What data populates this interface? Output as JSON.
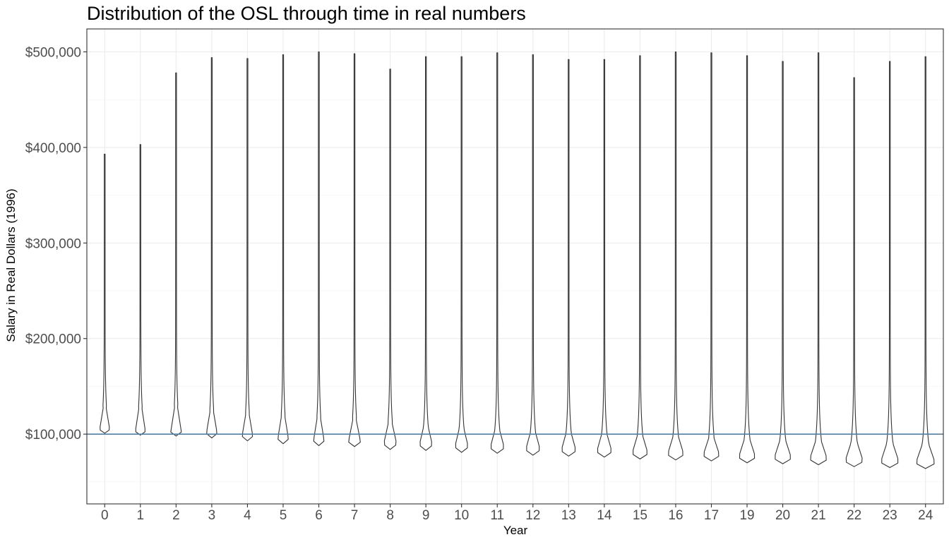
{
  "chart_data": {
    "type": "violin",
    "title": "Distribution of the OSL through time in real numbers",
    "xlabel": "Year",
    "ylabel": "Salary in Real Dollars (1996)",
    "categories": [
      "0",
      "1",
      "2",
      "3",
      "4",
      "5",
      "6",
      "7",
      "8",
      "9",
      "10",
      "11",
      "12",
      "13",
      "14",
      "15",
      "16",
      "17",
      "19",
      "20",
      "21",
      "22",
      "23",
      "24"
    ],
    "ylim": [
      27000,
      524000
    ],
    "y_ticks": [
      100000,
      200000,
      300000,
      400000,
      500000
    ],
    "y_tick_labels": [
      "$100,000",
      "$200,000",
      "$300,000",
      "$400,000",
      "$500,000"
    ],
    "reference_line": {
      "y": 100000,
      "color": "#4682b4"
    },
    "grid": true,
    "violins": [
      {
        "year": "0",
        "min": 101000,
        "max": 393000,
        "knee": 128000,
        "mode": 105000,
        "width": 0.28
      },
      {
        "year": "1",
        "min": 99000,
        "max": 403000,
        "knee": 128000,
        "mode": 103000,
        "width": 0.28
      },
      {
        "year": "2",
        "min": 98000,
        "max": 478000,
        "knee": 128000,
        "mode": 102000,
        "width": 0.3
      },
      {
        "year": "3",
        "min": 96000,
        "max": 494000,
        "knee": 125000,
        "mode": 101000,
        "width": 0.3
      },
      {
        "year": "4",
        "min": 93000,
        "max": 493000,
        "knee": 122000,
        "mode": 98000,
        "width": 0.3
      },
      {
        "year": "5",
        "min": 90000,
        "max": 497000,
        "knee": 120000,
        "mode": 95000,
        "width": 0.3
      },
      {
        "year": "6",
        "min": 88000,
        "max": 500000,
        "knee": 118000,
        "mode": 93000,
        "width": 0.3
      },
      {
        "year": "7",
        "min": 87000,
        "max": 498000,
        "knee": 115000,
        "mode": 92000,
        "width": 0.34
      },
      {
        "year": "8",
        "min": 84000,
        "max": 482000,
        "knee": 112000,
        "mode": 90000,
        "width": 0.36
      },
      {
        "year": "9",
        "min": 83000,
        "max": 495000,
        "knee": 110000,
        "mode": 89000,
        "width": 0.36
      },
      {
        "year": "10",
        "min": 81000,
        "max": 495000,
        "knee": 108000,
        "mode": 87000,
        "width": 0.37
      },
      {
        "year": "11",
        "min": 80000,
        "max": 499000,
        "knee": 106000,
        "mode": 86000,
        "width": 0.39
      },
      {
        "year": "12",
        "min": 78000,
        "max": 497000,
        "knee": 104000,
        "mode": 84000,
        "width": 0.4
      },
      {
        "year": "13",
        "min": 77000,
        "max": 492000,
        "knee": 103000,
        "mode": 83000,
        "width": 0.41
      },
      {
        "year": "14",
        "min": 76000,
        "max": 492000,
        "knee": 102000,
        "mode": 82000,
        "width": 0.42
      },
      {
        "year": "15",
        "min": 74000,
        "max": 496000,
        "knee": 100000,
        "mode": 80000,
        "width": 0.44
      },
      {
        "year": "16",
        "min": 73000,
        "max": 500000,
        "knee": 99000,
        "mode": 79000,
        "width": 0.45
      },
      {
        "year": "17",
        "min": 72000,
        "max": 499000,
        "knee": 97000,
        "mode": 78000,
        "width": 0.46
      },
      {
        "year": "19",
        "min": 70000,
        "max": 496000,
        "knee": 96000,
        "mode": 76000,
        "width": 0.47
      },
      {
        "year": "20",
        "min": 69000,
        "max": 490000,
        "knee": 95000,
        "mode": 75000,
        "width": 0.48
      },
      {
        "year": "21",
        "min": 68000,
        "max": 499000,
        "knee": 94000,
        "mode": 74000,
        "width": 0.49
      },
      {
        "year": "22",
        "min": 66000,
        "max": 473000,
        "knee": 93000,
        "mode": 72000,
        "width": 0.5
      },
      {
        "year": "23",
        "min": 65000,
        "max": 490000,
        "knee": 92000,
        "mode": 71000,
        "width": 0.51
      },
      {
        "year": "24",
        "min": 64000,
        "max": 495000,
        "knee": 91000,
        "mode": 70000,
        "width": 0.54
      }
    ]
  }
}
